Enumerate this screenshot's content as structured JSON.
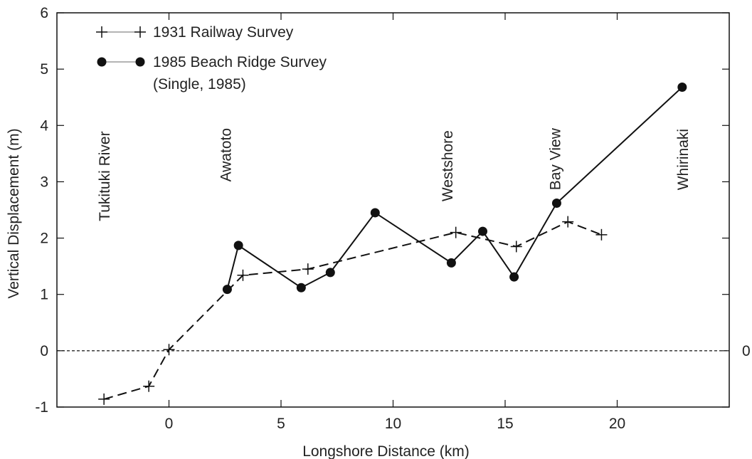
{
  "chart_data": {
    "type": "line",
    "xlabel": "Longshore Distance (km)",
    "ylabel": "Vertical Displacement (m)",
    "xlim": [
      -5,
      25
    ],
    "ylim": [
      -1,
      6
    ],
    "x_ticks": [
      0,
      5,
      10,
      15,
      20
    ],
    "y_ticks": [
      -1,
      0,
      1,
      2,
      3,
      4,
      5,
      6
    ],
    "zero_line": {
      "y": 0,
      "style": "dashed",
      "right_label": "0"
    },
    "legend": {
      "placement": "top-left",
      "entries": [
        {
          "label": "1931 Railway Survey",
          "marker": "plus"
        },
        {
          "label": "1985 Beach Ridge Survey",
          "marker": "dot"
        },
        {
          "label": "(Single, 1985)",
          "marker": "none"
        }
      ]
    },
    "series": [
      {
        "name": "1931 Railway Survey",
        "line_style": "dashed",
        "marker": "plus",
        "color": "#111111",
        "points": [
          {
            "x": -2.9,
            "y": -0.86
          },
          {
            "x": -0.9,
            "y": -0.63
          },
          {
            "x": 0.0,
            "y": 0.02
          },
          {
            "x": 3.3,
            "y": 1.34
          },
          {
            "x": 6.2,
            "y": 1.45
          },
          {
            "x": 12.8,
            "y": 2.1
          },
          {
            "x": 15.5,
            "y": 1.85
          },
          {
            "x": 17.8,
            "y": 2.29
          },
          {
            "x": 19.3,
            "y": 2.06
          }
        ]
      },
      {
        "name": "1985 Beach Ridge Survey",
        "line_style": "solid",
        "marker": "dot",
        "color": "#111111",
        "points": [
          {
            "x": 2.6,
            "y": 1.09
          },
          {
            "x": 3.1,
            "y": 1.87
          },
          {
            "x": 5.9,
            "y": 1.12
          },
          {
            "x": 7.2,
            "y": 1.39
          },
          {
            "x": 9.2,
            "y": 2.45
          },
          {
            "x": 12.6,
            "y": 1.56
          },
          {
            "x": 14.0,
            "y": 2.12
          },
          {
            "x": 15.4,
            "y": 1.31
          },
          {
            "x": 17.3,
            "y": 2.62
          },
          {
            "x": 22.9,
            "y": 4.68
          }
        ]
      }
    ],
    "location_labels": [
      {
        "text": "Tukituki River",
        "x": -2.9,
        "y_bottom": 2.3
      },
      {
        "text": "Awatoto",
        "x": 2.5,
        "y_bottom": 3.0
      },
      {
        "text": "Westshore",
        "x": 12.4,
        "y_bottom": 2.65
      },
      {
        "text": "Bay View",
        "x": 17.2,
        "y_bottom": 2.85
      },
      {
        "text": "Whirinaki",
        "x": 22.9,
        "y_bottom": 2.85
      }
    ]
  }
}
